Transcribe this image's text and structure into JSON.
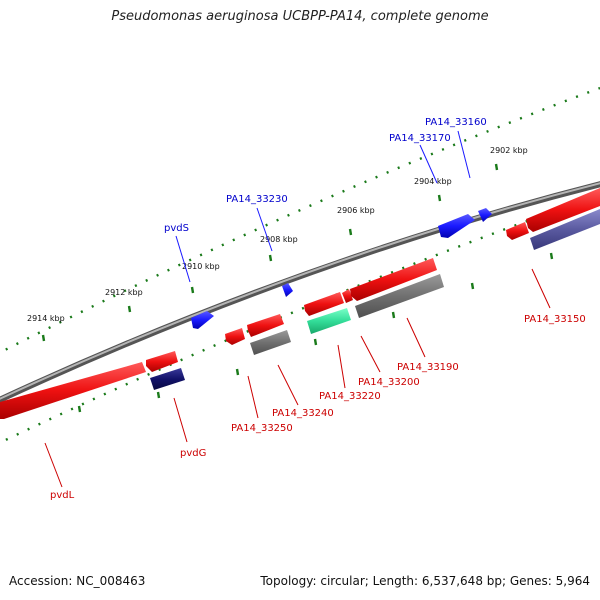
{
  "title": "Pseudomonas aeruginosa UCBPP-PA14, complete genome",
  "footer": {
    "accession": "Accession: NC_008463",
    "summary": "Topology: circular; Length: 6,537,648 bp; Genes: 5,964"
  },
  "ruler": {
    "ticks": [
      "2902 kbp",
      "2904 kbp",
      "2906 kbp",
      "2908 kbp",
      "2910 kbp",
      "2912 kbp",
      "2914 kbp"
    ]
  },
  "genes": {
    "forward": [
      "PA14_33160",
      "PA14_33170",
      "PA14_33230",
      "pvdS"
    ],
    "reverse": [
      "PA14_33150",
      "PA14_33190",
      "PA14_33200",
      "PA14_33220",
      "PA14_33240",
      "PA14_33250",
      "pvdG",
      "pvdL"
    ]
  },
  "colors": {
    "forward_gene": "#1a1aff",
    "reverse_gene": "#ee1111",
    "backbone": "#808080",
    "tick_mark": "#1a7a1a",
    "label_forward": "#0000cc",
    "label_reverse": "#cc0000"
  }
}
